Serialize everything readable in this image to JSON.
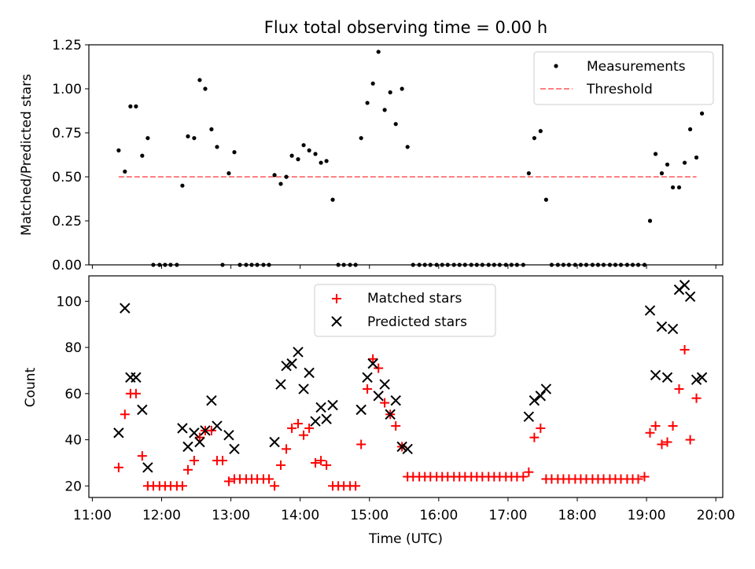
{
  "chart_data": [
    {
      "type": "scatter",
      "title": "Flux total observing time = 0.00 h",
      "ylabel": "Matched/Predicted stars",
      "xlabel": "",
      "xlim": [
        10.95,
        20.1
      ],
      "ylim": [
        0,
        1.25
      ],
      "yticks": [
        "0.00",
        "0.25",
        "0.50",
        "0.75",
        "1.00",
        "1.25"
      ],
      "grid": false,
      "legend": {
        "position": "top-right",
        "entries": [
          "Measurements",
          "Threshold"
        ]
      },
      "colors": {
        "measurements": "#000000",
        "threshold": "#ff8080"
      },
      "threshold": {
        "name": "Threshold",
        "y": 0.5,
        "x": [
          11.38,
          19.72
        ]
      },
      "series": [
        {
          "name": "Measurements",
          "marker": "dot",
          "points": [
            [
              11.38,
              0.65
            ],
            [
              11.47,
              0.53
            ],
            [
              11.55,
              0.9
            ],
            [
              11.63,
              0.9
            ],
            [
              11.72,
              0.62
            ],
            [
              11.8,
              0.72
            ],
            [
              11.88,
              0.0
            ],
            [
              11.97,
              0.0
            ],
            [
              12.05,
              0.0
            ],
            [
              12.13,
              0.0
            ],
            [
              12.22,
              0.0
            ],
            [
              12.3,
              0.45
            ],
            [
              12.38,
              0.73
            ],
            [
              12.47,
              0.72
            ],
            [
              12.55,
              1.05
            ],
            [
              12.63,
              1.0
            ],
            [
              12.72,
              0.77
            ],
            [
              12.8,
              0.67
            ],
            [
              12.88,
              0.0
            ],
            [
              12.97,
              0.52
            ],
            [
              13.05,
              0.64
            ],
            [
              13.13,
              0.0
            ],
            [
              13.22,
              0.0
            ],
            [
              13.3,
              0.0
            ],
            [
              13.38,
              0.0
            ],
            [
              13.47,
              0.0
            ],
            [
              13.55,
              0.0
            ],
            [
              13.63,
              0.51
            ],
            [
              13.72,
              0.46
            ],
            [
              13.8,
              0.5
            ],
            [
              13.88,
              0.62
            ],
            [
              13.97,
              0.6
            ],
            [
              14.05,
              0.68
            ],
            [
              14.13,
              0.65
            ],
            [
              14.22,
              0.63
            ],
            [
              14.3,
              0.58
            ],
            [
              14.38,
              0.59
            ],
            [
              14.47,
              0.37
            ],
            [
              14.55,
              0.0
            ],
            [
              14.63,
              0.0
            ],
            [
              14.72,
              0.0
            ],
            [
              14.8,
              0.0
            ],
            [
              14.88,
              0.72
            ],
            [
              14.97,
              0.92
            ],
            [
              15.05,
              1.03
            ],
            [
              15.13,
              1.21
            ],
            [
              15.22,
              0.88
            ],
            [
              15.3,
              0.98
            ],
            [
              15.38,
              0.8
            ],
            [
              15.47,
              1.0
            ],
            [
              15.55,
              0.67
            ],
            [
              15.63,
              0.0
            ],
            [
              15.72,
              0.0
            ],
            [
              15.8,
              0.0
            ],
            [
              15.88,
              0.0
            ],
            [
              15.97,
              0.0
            ],
            [
              16.05,
              0.0
            ],
            [
              16.13,
              0.0
            ],
            [
              16.22,
              0.0
            ],
            [
              16.3,
              0.0
            ],
            [
              16.38,
              0.0
            ],
            [
              16.47,
              0.0
            ],
            [
              16.55,
              0.0
            ],
            [
              16.63,
              0.0
            ],
            [
              16.72,
              0.0
            ],
            [
              16.8,
              0.0
            ],
            [
              16.88,
              0.0
            ],
            [
              16.97,
              0.0
            ],
            [
              17.05,
              0.0
            ],
            [
              17.13,
              0.0
            ],
            [
              17.22,
              0.0
            ],
            [
              17.3,
              0.52
            ],
            [
              17.38,
              0.72
            ],
            [
              17.47,
              0.76
            ],
            [
              17.55,
              0.37
            ],
            [
              17.63,
              0.0
            ],
            [
              17.72,
              0.0
            ],
            [
              17.8,
              0.0
            ],
            [
              17.88,
              0.0
            ],
            [
              17.97,
              0.0
            ],
            [
              18.05,
              0.0
            ],
            [
              18.13,
              0.0
            ],
            [
              18.22,
              0.0
            ],
            [
              18.3,
              0.0
            ],
            [
              18.38,
              0.0
            ],
            [
              18.47,
              0.0
            ],
            [
              18.55,
              0.0
            ],
            [
              18.63,
              0.0
            ],
            [
              18.72,
              0.0
            ],
            [
              18.8,
              0.0
            ],
            [
              18.88,
              0.0
            ],
            [
              18.97,
              0.0
            ],
            [
              19.05,
              0.25
            ],
            [
              19.13,
              0.63
            ],
            [
              19.22,
              0.52
            ],
            [
              19.3,
              0.57
            ],
            [
              19.38,
              0.44
            ],
            [
              19.47,
              0.44
            ],
            [
              19.55,
              0.58
            ],
            [
              19.63,
              0.77
            ],
            [
              19.72,
              0.61
            ],
            [
              19.8,
              0.86
            ]
          ]
        }
      ]
    },
    {
      "type": "scatter",
      "title": "",
      "ylabel": "Count",
      "xlabel": "Time (UTC)",
      "xlim": [
        10.95,
        20.1
      ],
      "ylim": [
        15,
        111
      ],
      "xticks": [
        "11:00",
        "12:00",
        "13:00",
        "14:00",
        "15:00",
        "16:00",
        "17:00",
        "18:00",
        "19:00",
        "20:00"
      ],
      "yticks": [
        "20",
        "40",
        "60",
        "80",
        "100"
      ],
      "grid": false,
      "legend": {
        "position": "top-center",
        "entries": [
          "Matched stars",
          "Predicted stars"
        ]
      },
      "colors": {
        "matched": "#ff0000",
        "predicted": "#000000"
      },
      "series": [
        {
          "name": "Matched stars",
          "marker": "plus",
          "points": [
            [
              11.38,
              28
            ],
            [
              11.47,
              51
            ],
            [
              11.55,
              60
            ],
            [
              11.63,
              60
            ],
            [
              11.72,
              33
            ],
            [
              11.8,
              20
            ],
            [
              11.88,
              20
            ],
            [
              11.97,
              20
            ],
            [
              12.05,
              20
            ],
            [
              12.13,
              20
            ],
            [
              12.22,
              20
            ],
            [
              12.3,
              20
            ],
            [
              12.38,
              27
            ],
            [
              12.47,
              31
            ],
            [
              12.55,
              41
            ],
            [
              12.63,
              44
            ],
            [
              12.72,
              44
            ],
            [
              12.8,
              31
            ],
            [
              12.88,
              31
            ],
            [
              12.97,
              22
            ],
            [
              13.05,
              23
            ],
            [
              13.13,
              23
            ],
            [
              13.22,
              23
            ],
            [
              13.3,
              23
            ],
            [
              13.38,
              23
            ],
            [
              13.47,
              23
            ],
            [
              13.55,
              23
            ],
            [
              13.63,
              20
            ],
            [
              13.72,
              29
            ],
            [
              13.8,
              36
            ],
            [
              13.88,
              45
            ],
            [
              13.97,
              47
            ],
            [
              14.05,
              42
            ],
            [
              14.13,
              45
            ],
            [
              14.22,
              30
            ],
            [
              14.3,
              31
            ],
            [
              14.38,
              29
            ],
            [
              14.47,
              20
            ],
            [
              14.55,
              20
            ],
            [
              14.63,
              20
            ],
            [
              14.72,
              20
            ],
            [
              14.8,
              20
            ],
            [
              14.88,
              38
            ],
            [
              14.97,
              62
            ],
            [
              15.05,
              75
            ],
            [
              15.13,
              71
            ],
            [
              15.22,
              56
            ],
            [
              15.3,
              51
            ],
            [
              15.38,
              46
            ],
            [
              15.47,
              37
            ],
            [
              15.55,
              24
            ],
            [
              15.63,
              24
            ],
            [
              15.72,
              24
            ],
            [
              15.8,
              24
            ],
            [
              15.88,
              24
            ],
            [
              15.97,
              24
            ],
            [
              16.05,
              24
            ],
            [
              16.13,
              24
            ],
            [
              16.22,
              24
            ],
            [
              16.3,
              24
            ],
            [
              16.38,
              24
            ],
            [
              16.47,
              24
            ],
            [
              16.55,
              24
            ],
            [
              16.63,
              24
            ],
            [
              16.72,
              24
            ],
            [
              16.8,
              24
            ],
            [
              16.88,
              24
            ],
            [
              16.97,
              24
            ],
            [
              17.05,
              24
            ],
            [
              17.13,
              24
            ],
            [
              17.22,
              24
            ],
            [
              17.3,
              26
            ],
            [
              17.38,
              41
            ],
            [
              17.47,
              45
            ],
            [
              17.55,
              23
            ],
            [
              17.63,
              23
            ],
            [
              17.72,
              23
            ],
            [
              17.8,
              23
            ],
            [
              17.88,
              23
            ],
            [
              17.97,
              23
            ],
            [
              18.05,
              23
            ],
            [
              18.13,
              23
            ],
            [
              18.22,
              23
            ],
            [
              18.3,
              23
            ],
            [
              18.38,
              23
            ],
            [
              18.47,
              23
            ],
            [
              18.55,
              23
            ],
            [
              18.63,
              23
            ],
            [
              18.72,
              23
            ],
            [
              18.8,
              23
            ],
            [
              18.88,
              23
            ],
            [
              18.97,
              24
            ],
            [
              19.05,
              43
            ],
            [
              19.13,
              46
            ],
            [
              19.22,
              38
            ],
            [
              19.3,
              39
            ],
            [
              19.38,
              46
            ],
            [
              19.47,
              62
            ],
            [
              19.55,
              79
            ],
            [
              19.63,
              40
            ],
            [
              19.72,
              58
            ]
          ]
        },
        {
          "name": "Predicted stars",
          "marker": "x",
          "points": [
            [
              11.38,
              43
            ],
            [
              11.47,
              97
            ],
            [
              11.55,
              67
            ],
            [
              11.63,
              67
            ],
            [
              11.72,
              53
            ],
            [
              11.8,
              28
            ],
            [
              12.3,
              45
            ],
            [
              12.38,
              37
            ],
            [
              12.47,
              43
            ],
            [
              12.55,
              39
            ],
            [
              12.63,
              44
            ],
            [
              12.72,
              57
            ],
            [
              12.8,
              46
            ],
            [
              12.97,
              42
            ],
            [
              13.05,
              36
            ],
            [
              13.63,
              39
            ],
            [
              13.72,
              64
            ],
            [
              13.8,
              72
            ],
            [
              13.88,
              73
            ],
            [
              13.97,
              78
            ],
            [
              14.05,
              62
            ],
            [
              14.13,
              69
            ],
            [
              14.22,
              48
            ],
            [
              14.3,
              54
            ],
            [
              14.38,
              49
            ],
            [
              14.47,
              55
            ],
            [
              14.88,
              53
            ],
            [
              14.97,
              67
            ],
            [
              15.05,
              73
            ],
            [
              15.13,
              59
            ],
            [
              15.22,
              64
            ],
            [
              15.3,
              51
            ],
            [
              15.38,
              57
            ],
            [
              15.47,
              37
            ],
            [
              15.55,
              36
            ],
            [
              17.3,
              50
            ],
            [
              17.38,
              57
            ],
            [
              17.47,
              59
            ],
            [
              17.55,
              62
            ],
            [
              19.05,
              96
            ],
            [
              19.13,
              68
            ],
            [
              19.22,
              89
            ],
            [
              19.3,
              67
            ],
            [
              19.38,
              88
            ],
            [
              19.47,
              105
            ],
            [
              19.55,
              107
            ],
            [
              19.63,
              102
            ],
            [
              19.72,
              66
            ],
            [
              19.8,
              67
            ]
          ]
        }
      ]
    }
  ]
}
